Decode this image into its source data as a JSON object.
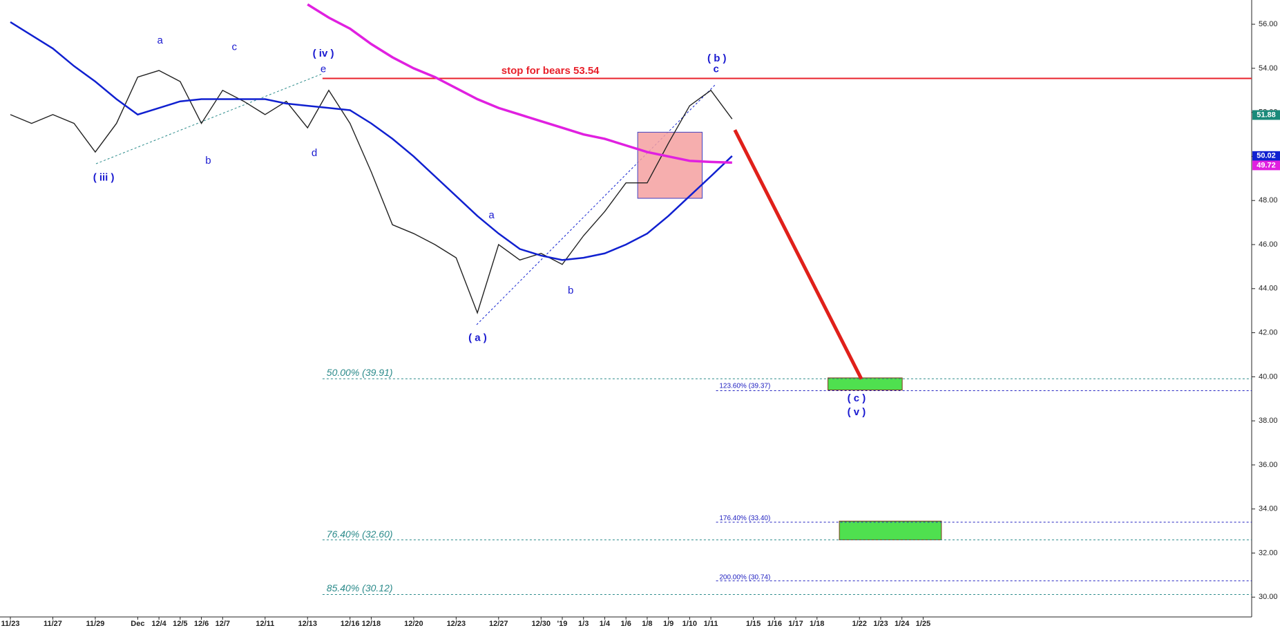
{
  "chart_data": {
    "type": "line",
    "categories": [
      "11/23",
      null,
      "11/27",
      null,
      "11/29",
      null,
      "Dec",
      "12/4",
      "12/5",
      "12/6",
      "12/7",
      null,
      "12/11",
      null,
      "12/13",
      null,
      "12/16",
      "12/18",
      null,
      "12/20",
      null,
      "12/23",
      null,
      "12/27",
      null,
      "12/30",
      "'19",
      "1/3",
      "1/4",
      "1/6",
      "1/8",
      "1/9",
      "1/10",
      "1/11",
      null,
      "1/15",
      "1/16",
      "1/17",
      "1/18",
      null,
      "1/22",
      "1/23",
      "1/24",
      "1/25",
      null,
      null,
      null,
      null,
      null,
      null,
      null,
      null,
      null,
      null,
      null,
      null,
      null,
      null,
      null
    ],
    "series": [
      {
        "color": "#222222",
        "values": [
          51.9,
          51.5,
          51.9,
          51.5,
          50.2,
          51.5,
          53.6,
          53.9,
          53.4,
          51.5,
          53.0,
          52.5,
          51.9,
          52.5,
          51.3,
          53.0,
          51.5,
          49.3,
          46.9,
          46.5,
          46.0,
          45.4,
          42.9,
          46.0,
          45.3,
          45.6,
          45.1,
          46.4,
          47.5,
          48.8,
          48.8,
          50.6,
          52.3,
          53.0,
          51.7,
          null,
          null,
          null,
          null,
          null,
          null,
          null,
          null,
          null,
          null,
          null,
          null,
          null,
          null,
          null,
          null,
          null,
          null,
          null,
          null,
          null,
          null,
          null,
          null
        ]
      },
      {
        "color": "#1020d0",
        "values": [
          56.1,
          55.5,
          54.9,
          54.1,
          53.4,
          52.6,
          51.9,
          52.2,
          52.5,
          52.6,
          52.6,
          52.6,
          52.6,
          52.4,
          52.3,
          52.2,
          52.1,
          51.5,
          50.8,
          50.0,
          49.1,
          48.2,
          47.3,
          46.5,
          45.8,
          45.5,
          45.3,
          45.4,
          45.6,
          46.0,
          46.5,
          47.3,
          48.2,
          49.1,
          50.02,
          null,
          null,
          null,
          null,
          null,
          null,
          null,
          null,
          null,
          null,
          null,
          null,
          null,
          null,
          null,
          null,
          null,
          null,
          null,
          null,
          null,
          null,
          null,
          null
        ]
      },
      {
        "color": "#e020e0",
        "values": [
          null,
          null,
          null,
          null,
          null,
          null,
          null,
          null,
          null,
          null,
          null,
          null,
          null,
          null,
          56.9,
          56.3,
          55.8,
          55.1,
          54.5,
          54.0,
          53.6,
          53.1,
          52.6,
          52.2,
          51.9,
          51.6,
          51.3,
          51.0,
          50.8,
          50.5,
          50.2,
          50.0,
          49.8,
          49.75,
          49.72,
          null,
          null,
          null,
          null,
          null,
          null,
          null,
          null,
          null,
          null,
          null,
          null,
          null,
          null,
          null,
          null,
          null,
          null,
          null,
          null,
          null,
          null,
          null,
          null
        ]
      }
    ],
    "ylim": [
      29.1,
      57.1
    ],
    "yticks": [
      {
        "value": 30,
        "label": "30.00"
      },
      {
        "value": 32,
        "label": "32.00"
      },
      {
        "value": 34,
        "label": "34.00"
      },
      {
        "value": 36,
        "label": "36.00"
      },
      {
        "value": 38,
        "label": "38.00"
      },
      {
        "value": 40,
        "label": "40.00"
      },
      {
        "value": 42,
        "label": "42.00"
      },
      {
        "value": 44,
        "label": "44.00"
      },
      {
        "value": 46,
        "label": "46.00"
      },
      {
        "value": 48,
        "label": "48.00"
      },
      {
        "value": 50,
        "label": "50.00"
      },
      {
        "value": 52,
        "label": "52.00"
      },
      {
        "value": 54,
        "label": "54.00"
      },
      {
        "value": 56,
        "label": "56.00"
      }
    ],
    "last_values": [
      {
        "value": 51.88,
        "color": "#1a8a7a"
      },
      {
        "value": 50.02,
        "color": "#1020d0"
      },
      {
        "value": 49.72,
        "color": "#e020e0"
      }
    ],
    "levels": [
      {
        "value": 53.54,
        "label": "stop for bears 53.54",
        "color": "#e8202a"
      },
      {
        "value": 39.91,
        "label": "50.00% (39.91)",
        "color": "#2a8a8a"
      },
      {
        "value": 32.6,
        "label": "76.40% (32.60)",
        "color": "#2a8a8a"
      },
      {
        "value": 30.12,
        "label": "85.40% (30.12)",
        "color": "#2a8a8a"
      },
      {
        "value": 39.37,
        "label": "123.60% (39.37)",
        "color": "#2020c0"
      },
      {
        "value": 33.4,
        "label": "176.40% (33.40)",
        "color": "#2020c0"
      },
      {
        "value": 30.74,
        "label": "200.00% (30.74)",
        "color": "#2020c0"
      }
    ],
    "zones": [
      {
        "range": [
          48.1,
          51.1
        ],
        "color": "#f4a0a0"
      },
      {
        "range": [
          39.4,
          39.95
        ],
        "color": "#4fe04f"
      },
      {
        "range": [
          32.6,
          33.45
        ],
        "color": "#4fe04f"
      }
    ],
    "projection": [
      51.2,
      39.9
    ],
    "annotations": [
      "( iii )",
      "a",
      "b",
      "c",
      "( iv )",
      "e",
      "d",
      "( a )",
      "a",
      "b",
      "( b )",
      "c",
      "( c )",
      "( v )"
    ]
  }
}
